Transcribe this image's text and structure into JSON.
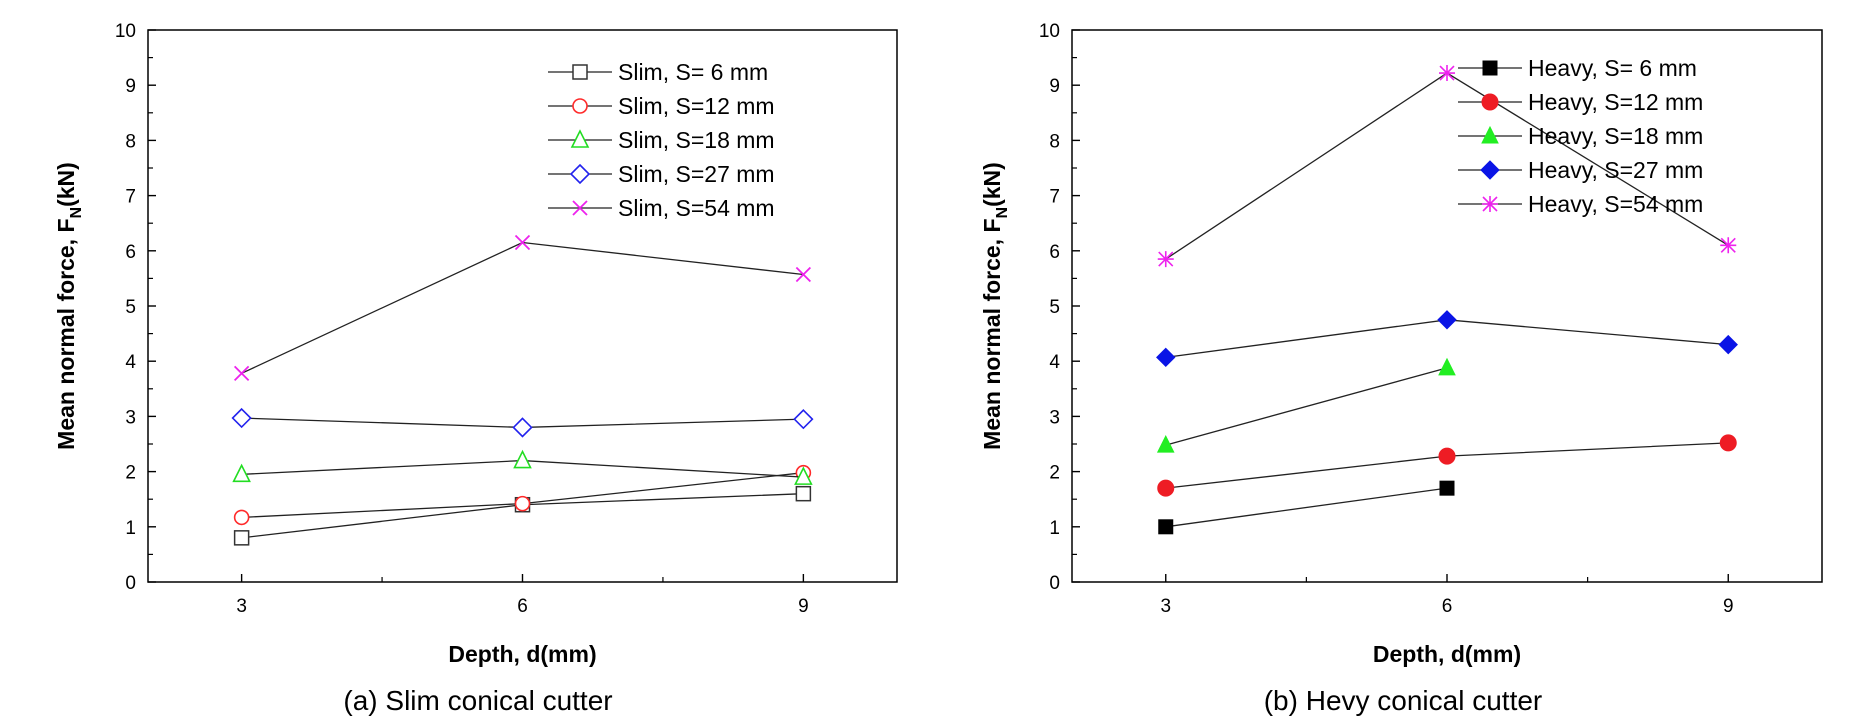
{
  "chart_data": [
    {
      "type": "line",
      "caption": "(a)  Slim  conical  cutter",
      "xlabel": "Depth, d(mm)",
      "ylabel_main": "Mean normal force, F",
      "ylabel_sub": "N",
      "ylabel_tail": "(kN)",
      "x": [
        3,
        6,
        9
      ],
      "xticks": [
        "3",
        "6",
        "9"
      ],
      "xlim": [
        2,
        10
      ],
      "ylim": [
        0,
        10
      ],
      "yticks": [
        "0",
        "1",
        "2",
        "3",
        "4",
        "5",
        "6",
        "7",
        "8",
        "9",
        "10"
      ],
      "grid": false,
      "legend_position": "top-right",
      "series": [
        {
          "name": "Slim, S=  6 mm",
          "marker": "square-open",
          "color": "#333333",
          "values": [
            0.8,
            1.4,
            1.6
          ]
        },
        {
          "name": "Slim, S=12 mm",
          "marker": "circle-open",
          "color": "#ff2a2a",
          "values": [
            1.17,
            1.42,
            1.98
          ]
        },
        {
          "name": "Slim, S=18 mm",
          "marker": "triangle-open",
          "color": "#22dd22",
          "values": [
            1.95,
            2.2,
            1.9
          ]
        },
        {
          "name": "Slim, S=27 mm",
          "marker": "diamond-open",
          "color": "#2222ee",
          "values": [
            2.97,
            2.8,
            2.95
          ]
        },
        {
          "name": "Slim, S=54 mm",
          "marker": "x",
          "color": "#ee22ee",
          "values": [
            3.78,
            6.15,
            5.57
          ]
        }
      ]
    },
    {
      "type": "line",
      "caption": "(b)  Hevy  conical  cutter",
      "xlabel": "Depth, d(mm)",
      "ylabel_main": "Mean normal force, F",
      "ylabel_sub": "N",
      "ylabel_tail": "(kN)",
      "x": [
        3,
        6,
        9
      ],
      "xticks": [
        "3",
        "6",
        "9"
      ],
      "xlim": [
        2,
        10
      ],
      "ylim": [
        0,
        10
      ],
      "yticks": [
        "0",
        "1",
        "2",
        "3",
        "4",
        "5",
        "6",
        "7",
        "8",
        "9",
        "10"
      ],
      "grid": false,
      "legend_position": "top-right",
      "series": [
        {
          "name": "Heavy, S=  6 mm",
          "marker": "square-filled",
          "color": "#000000",
          "x": [
            3,
            6
          ],
          "values": [
            1.0,
            1.7
          ]
        },
        {
          "name": "Heavy, S=12 mm",
          "marker": "circle-filled",
          "color": "#ee1c24",
          "x": [
            3,
            6,
            9
          ],
          "values": [
            1.7,
            2.28,
            2.52
          ]
        },
        {
          "name": "Heavy, S=18 mm",
          "marker": "triangle-filled",
          "color": "#22ee22",
          "x": [
            3,
            6
          ],
          "values": [
            2.48,
            3.88
          ]
        },
        {
          "name": "Heavy, S=27 mm",
          "marker": "diamond-filled",
          "color": "#0a14e6",
          "x": [
            3,
            6,
            9
          ],
          "values": [
            4.07,
            4.75,
            4.3
          ]
        },
        {
          "name": "Heavy, S=54 mm",
          "marker": "asterisk",
          "color": "#ee22ee",
          "x": [
            3,
            6,
            9
          ],
          "values": [
            5.85,
            9.22,
            6.1
          ]
        }
      ]
    }
  ]
}
